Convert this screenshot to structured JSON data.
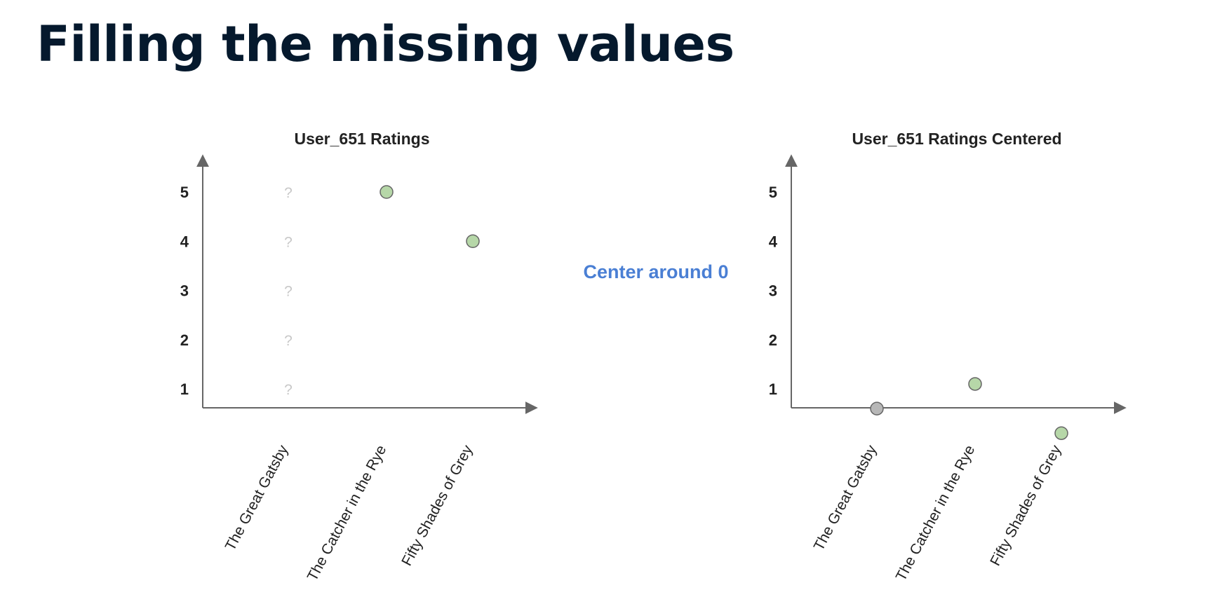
{
  "title": "Filling the missing values",
  "middle_note": "Center around 0",
  "chart_data": [
    {
      "type": "scatter",
      "title": "User_651 Ratings",
      "categories": [
        "The Great Gatsby",
        "The Catcher in the Rye",
        "Fifty Shades of Grey"
      ],
      "yticks": [
        "1",
        "2",
        "3",
        "4",
        "5"
      ],
      "ylim": [
        0.6,
        5.6
      ],
      "series": [
        {
          "values": [
            null,
            5,
            4
          ],
          "color": "#b6d7a8"
        }
      ],
      "missing": [
        {
          "category": "The Great Gatsby",
          "y": 5,
          "label": "?"
        },
        {
          "category": "The Great Gatsby",
          "y": 4,
          "label": "?"
        },
        {
          "category": "The Great Gatsby",
          "y": 3,
          "label": "?"
        },
        {
          "category": "The Great Gatsby",
          "y": 2,
          "label": "?"
        },
        {
          "category": "The Great Gatsby",
          "y": 1,
          "label": "?"
        }
      ]
    },
    {
      "type": "scatter",
      "title": "User_651 Ratings Centered",
      "categories": [
        "The Great Gatsby",
        "The Catcher in the Rye",
        "Fifty Shades of Grey"
      ],
      "yticks": [
        "1",
        "2",
        "3",
        "4",
        "5"
      ],
      "ylim": [
        0.6,
        5.6
      ],
      "series": [
        {
          "values": [
            0.6,
            1.1,
            0.1
          ],
          "colors": [
            "#b7b7b7",
            "#b6d7a8",
            "#b6d7a8"
          ]
        }
      ]
    }
  ],
  "colors": {
    "title": "#05192d",
    "accent": "#4a7fd4",
    "marker_green": "#b6d7a8",
    "marker_gray": "#b7b7b7",
    "marker_stroke": "#666666"
  }
}
